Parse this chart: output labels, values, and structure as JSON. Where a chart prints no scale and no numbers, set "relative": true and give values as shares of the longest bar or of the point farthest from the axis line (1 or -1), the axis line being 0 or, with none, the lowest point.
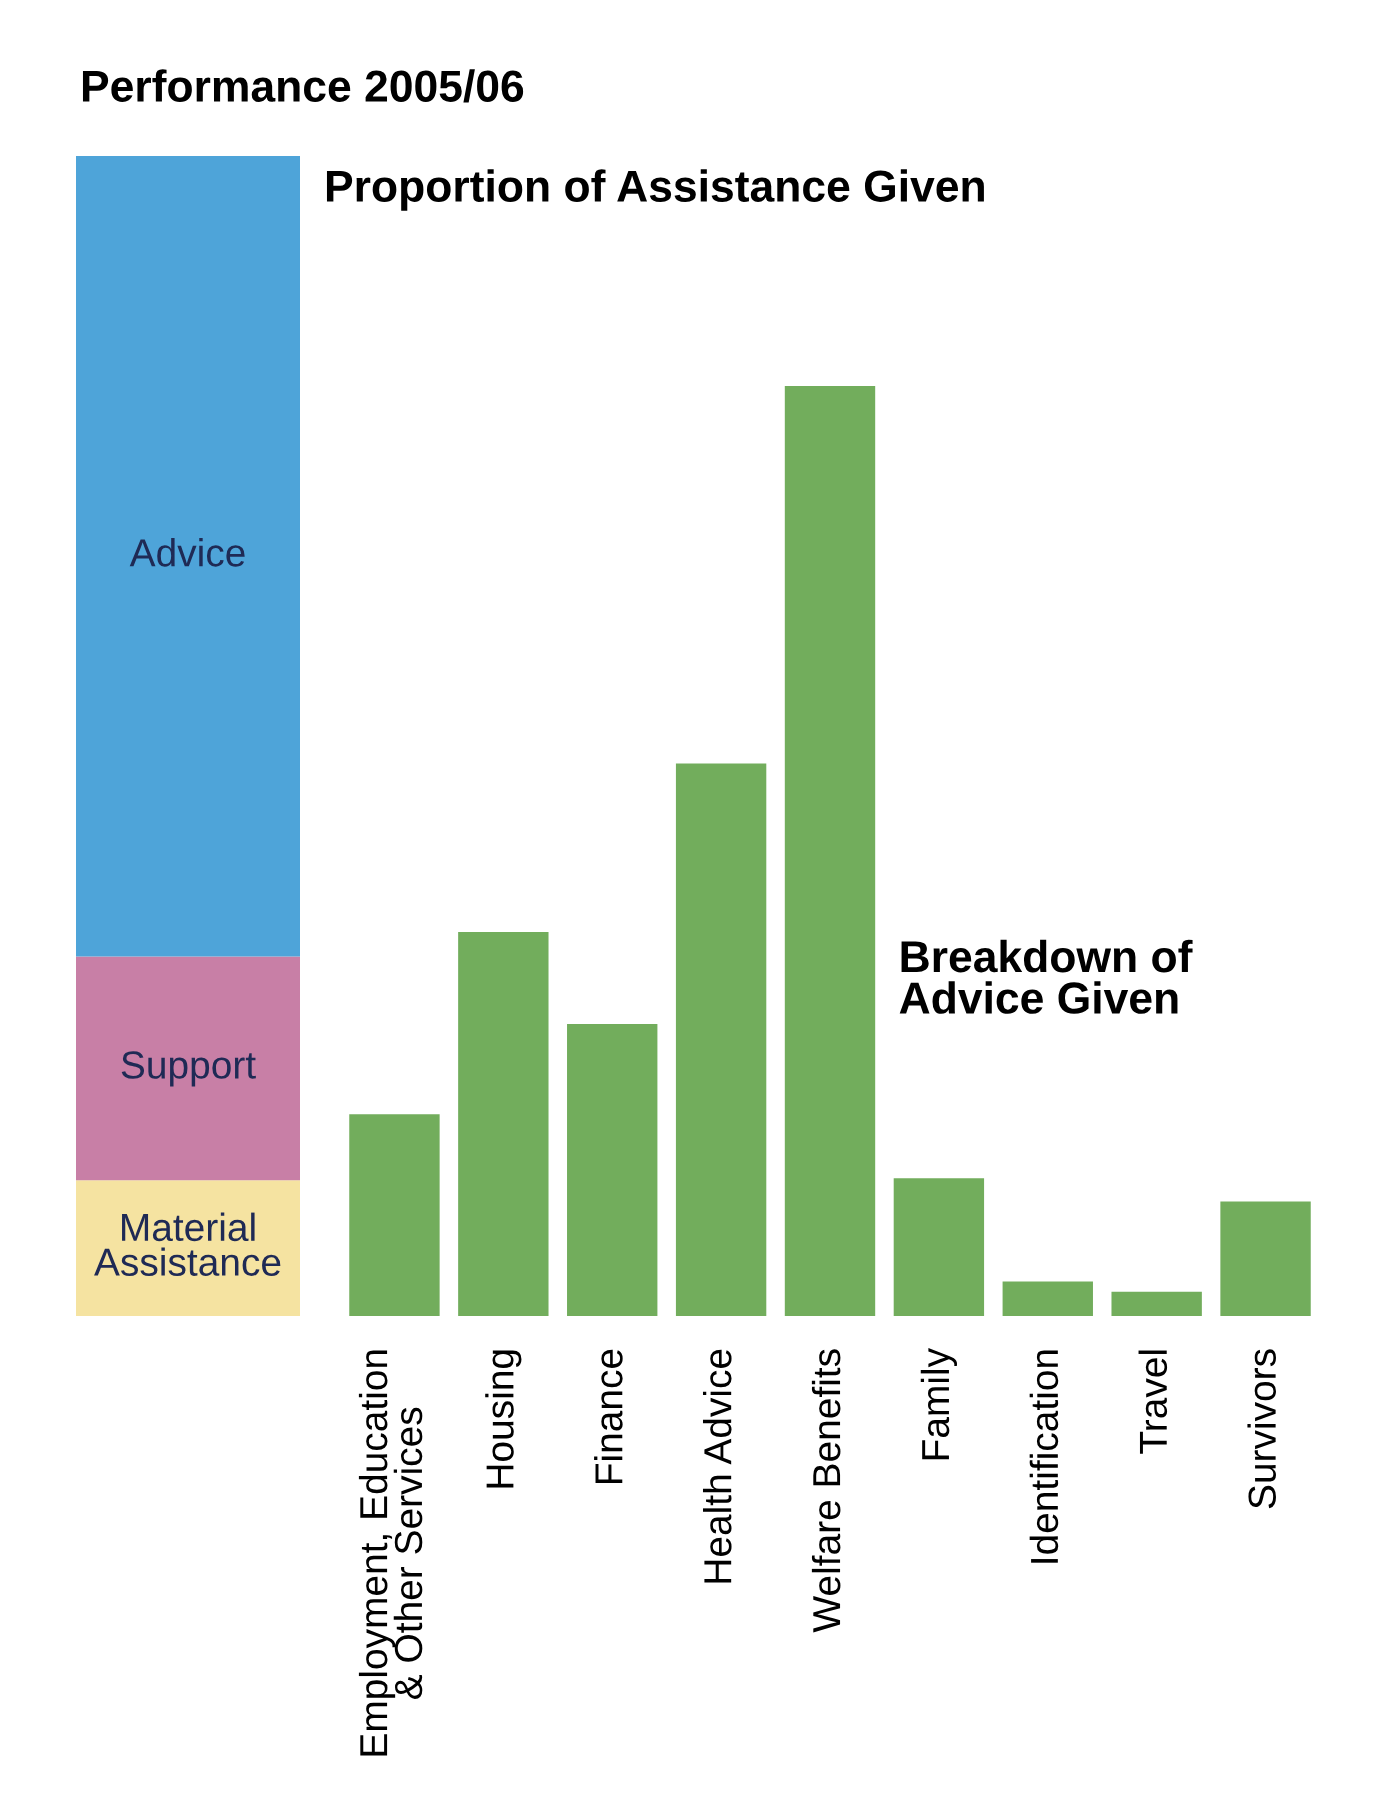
{
  "chart_data": [
    {
      "type": "bar",
      "title": "Performance 2005/06",
      "stacked": true,
      "relative": true,
      "categories": [
        null
      ],
      "series": [
        {
          "name": "Material\nAssistance",
          "color": "#f5e3a1",
          "values": [
            0.117
          ]
        },
        {
          "name": "Support",
          "color": "#c87fa6",
          "values": [
            0.193
          ]
        },
        {
          "name": "Advice",
          "color": "#4ea4d9",
          "values": [
            0.69
          ]
        }
      ]
    },
    {
      "type": "bar",
      "title": "Breakdown of\nAdvice Given",
      "subtitle": "Proportion of Assistance Given",
      "relative": true,
      "color": "#72ad5c",
      "categories": [
        "Employment, Education\n& Other Services",
        "Housing",
        "Finance",
        "Health Advice",
        "Welfare Benefits",
        "Family",
        "Identification",
        "Travel",
        "Survivors"
      ],
      "values": [
        0.217,
        0.413,
        0.314,
        0.594,
        1,
        0.148,
        0.037,
        0.026,
        0.123
      ]
    }
  ]
}
